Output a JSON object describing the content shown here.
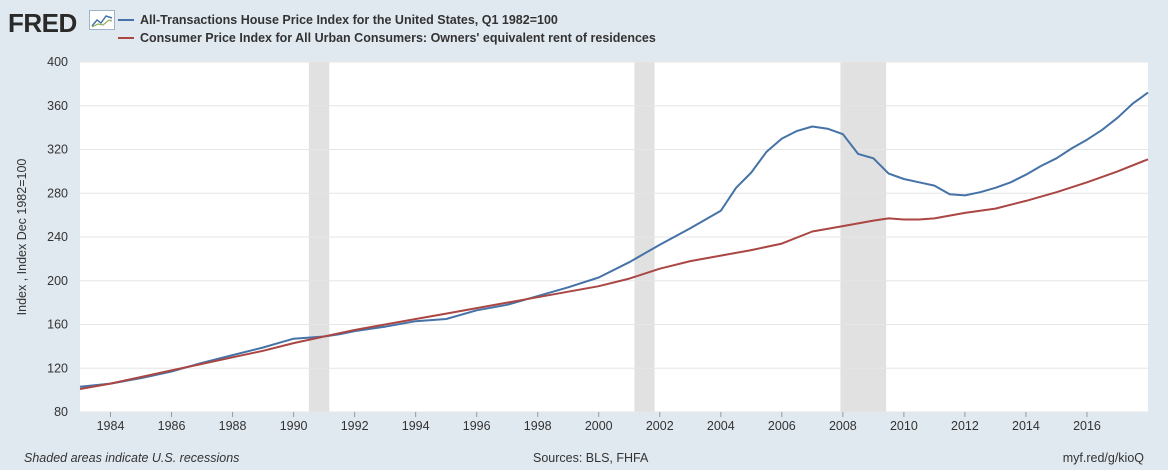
{
  "logo": {
    "text": "FRED",
    "icon": "fred-graph-icon"
  },
  "colors": {
    "background": "#e1e9f0",
    "plot_background": "#ffffff",
    "recession": "#e1e1e1",
    "series1": "#4572a7",
    "series2": "#aa4643"
  },
  "footer": {
    "note": "Shaded areas indicate U.S. recessions",
    "sources": "Sources: BLS, FHFA",
    "link": "myf.red/g/kioQ"
  },
  "chart_data": {
    "type": "line",
    "title": "",
    "xlabel": "",
    "ylabel": "Index , Index Dec 1982=100",
    "xlim": [
      1983.0,
      2018.0
    ],
    "ylim": [
      80,
      400
    ],
    "yticks": [
      80,
      120,
      160,
      200,
      240,
      280,
      320,
      360,
      400
    ],
    "xticks": [
      "1984",
      "1986",
      "1988",
      "1990",
      "1992",
      "1994",
      "1996",
      "1998",
      "2000",
      "2002",
      "2004",
      "2006",
      "2008",
      "2010",
      "2012",
      "2014",
      "2016"
    ],
    "grid": true,
    "legend_position": "top-left",
    "recessions": [
      [
        1990.5,
        1991.17
      ],
      [
        2001.17,
        2001.83
      ],
      [
        2007.92,
        2009.42
      ]
    ],
    "series": [
      {
        "name": "All-Transactions House Price Index for the United States, Q1 1982=100",
        "color": "#4572a7",
        "x": [
          1983.0,
          1984.0,
          1985.0,
          1986.0,
          1987.0,
          1988.0,
          1989.0,
          1989.5,
          1990.0,
          1990.5,
          1991.0,
          1991.5,
          1992.0,
          1993.0,
          1994.0,
          1995.0,
          1996.0,
          1997.0,
          1998.0,
          1999.0,
          2000.0,
          2001.0,
          2002.0,
          2003.0,
          2004.0,
          2004.5,
          2005.0,
          2005.5,
          2006.0,
          2006.5,
          2007.0,
          2007.5,
          2008.0,
          2008.5,
          2009.0,
          2009.5,
          2010.0,
          2010.5,
          2011.0,
          2011.5,
          2012.0,
          2012.5,
          2013.0,
          2013.5,
          2014.0,
          2014.5,
          2015.0,
          2015.5,
          2016.0,
          2016.5,
          2017.0,
          2017.5,
          2018.0
        ],
        "values": [
          103,
          106,
          111,
          117,
          125,
          132,
          139,
          143,
          147,
          148,
          149,
          151,
          154,
          158,
          163,
          165,
          173,
          178,
          186,
          194,
          203,
          217,
          233,
          248,
          264,
          285,
          299,
          318,
          330,
          337,
          341,
          339,
          334,
          316,
          312,
          298,
          293,
          290,
          287,
          279,
          278,
          281,
          285,
          290,
          297,
          305,
          312,
          321,
          329,
          338,
          349,
          362,
          372
        ]
      },
      {
        "name": "Consumer Price Index for All Urban Consumers: Owners' equivalent rent of residences",
        "color": "#aa4643",
        "x": [
          1983.0,
          1984.0,
          1985.0,
          1986.0,
          1987.0,
          1988.0,
          1989.0,
          1990.0,
          1991.0,
          1992.0,
          1993.0,
          1994.0,
          1995.0,
          1996.0,
          1997.0,
          1998.0,
          1999.0,
          2000.0,
          2001.0,
          2002.0,
          2003.0,
          2004.0,
          2005.0,
          2006.0,
          2007.0,
          2008.0,
          2009.0,
          2009.5,
          2010.0,
          2010.5,
          2011.0,
          2012.0,
          2013.0,
          2014.0,
          2015.0,
          2016.0,
          2017.0,
          2018.0
        ],
        "values": [
          101,
          106,
          112,
          118,
          124,
          130,
          136,
          143,
          149,
          155,
          160,
          165,
          170,
          175,
          180,
          185,
          190,
          195,
          202,
          211,
          218,
          223,
          228,
          234,
          245,
          250,
          255,
          257,
          256,
          256,
          257,
          262,
          266,
          273,
          281,
          290,
          300,
          311
        ]
      }
    ]
  }
}
